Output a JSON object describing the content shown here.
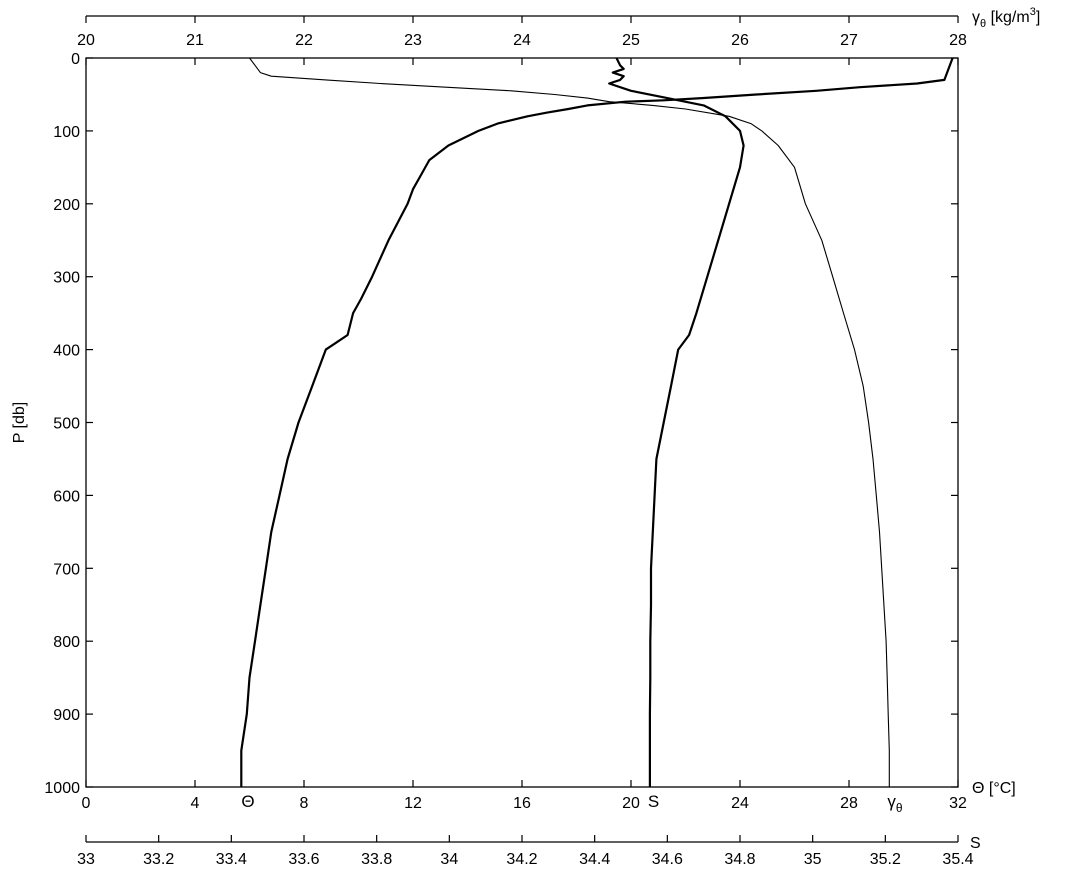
{
  "chart_data": {
    "type": "line",
    "title": "",
    "ylabel": "P [db]",
    "ylim": [
      0,
      1000
    ],
    "y_inverted": true,
    "y_ticks": [
      0,
      100,
      200,
      300,
      400,
      500,
      600,
      700,
      800,
      900,
      1000
    ],
    "grid": false,
    "axes": {
      "theta": {
        "label": "Θ [°C]",
        "position": "bottom",
        "range": [
          0,
          32
        ],
        "ticks": [
          "0",
          "4",
          "8",
          "12",
          "16",
          "20",
          "24",
          "28",
          "32"
        ]
      },
      "gamma": {
        "label_symbol": "γ",
        "label_sub": "θ",
        "label_unit": " [kg/m",
        "label_sup": "3",
        "label_close": "]",
        "position": "top",
        "range": [
          20,
          28
        ],
        "ticks": [
          "20",
          "21",
          "22",
          "23",
          "24",
          "25",
          "26",
          "27",
          "28"
        ]
      },
      "salinity": {
        "label": "S",
        "position": "bottom-offset",
        "range": [
          33,
          35.4
        ],
        "ticks": [
          "33",
          "33.2",
          "33.4",
          "33.6",
          "33.8",
          "34",
          "34.2",
          "34.4",
          "34.6",
          "34.8",
          "35",
          "35.2",
          "35.4"
        ]
      }
    },
    "series": [
      {
        "name": "Θ",
        "axis": "theta",
        "line_width": 2.2,
        "points": [
          [
            0,
            31.8
          ],
          [
            20,
            31.6
          ],
          [
            30,
            31.5
          ],
          [
            35,
            30.5
          ],
          [
            40,
            28.4
          ],
          [
            45,
            26.8
          ],
          [
            50,
            24.6
          ],
          [
            55,
            22.6
          ],
          [
            58,
            21.2
          ],
          [
            60,
            19.8
          ],
          [
            65,
            18.4
          ],
          [
            70,
            17.7
          ],
          [
            75,
            16.9
          ],
          [
            80,
            16.2
          ],
          [
            90,
            15.1
          ],
          [
            100,
            14.4
          ],
          [
            120,
            13.3
          ],
          [
            140,
            12.6
          ],
          [
            160,
            12.3
          ],
          [
            180,
            12.0
          ],
          [
            200,
            11.8
          ],
          [
            250,
            11.1
          ],
          [
            300,
            10.5
          ],
          [
            330,
            10.1
          ],
          [
            350,
            9.8
          ],
          [
            380,
            9.6
          ],
          [
            390,
            9.2
          ],
          [
            400,
            8.8
          ],
          [
            450,
            8.3
          ],
          [
            500,
            7.8
          ],
          [
            550,
            7.4
          ],
          [
            600,
            7.1
          ],
          [
            650,
            6.8
          ],
          [
            700,
            6.6
          ],
          [
            750,
            6.4
          ],
          [
            800,
            6.2
          ],
          [
            850,
            6.0
          ],
          [
            900,
            5.9
          ],
          [
            950,
            5.7
          ],
          [
            1000,
            5.7
          ]
        ]
      },
      {
        "name": "S",
        "axis": "salinity",
        "line_width": 2.2,
        "points": [
          [
            0,
            34.46
          ],
          [
            10,
            34.47
          ],
          [
            15,
            34.48
          ],
          [
            20,
            34.45
          ],
          [
            25,
            34.48
          ],
          [
            30,
            34.47
          ],
          [
            35,
            34.44
          ],
          [
            45,
            34.5
          ],
          [
            55,
            34.6
          ],
          [
            65,
            34.7
          ],
          [
            80,
            34.76
          ],
          [
            100,
            34.8
          ],
          [
            120,
            34.81
          ],
          [
            150,
            34.8
          ],
          [
            200,
            34.77
          ],
          [
            250,
            34.74
          ],
          [
            300,
            34.71
          ],
          [
            350,
            34.68
          ],
          [
            380,
            34.66
          ],
          [
            400,
            34.63
          ],
          [
            450,
            34.61
          ],
          [
            500,
            34.59
          ],
          [
            550,
            34.57
          ],
          [
            600,
            34.565
          ],
          [
            650,
            34.56
          ],
          [
            700,
            34.555
          ],
          [
            750,
            34.555
          ],
          [
            800,
            34.553
          ],
          [
            850,
            34.553
          ],
          [
            900,
            34.552
          ],
          [
            950,
            34.552
          ],
          [
            1000,
            34.552
          ]
        ]
      },
      {
        "name": "γθ",
        "label_symbol": "γ",
        "label_sub": "θ",
        "axis": "gamma",
        "line_width": 1.1,
        "points": [
          [
            0,
            21.5
          ],
          [
            10,
            21.55
          ],
          [
            20,
            21.6
          ],
          [
            25,
            21.7
          ],
          [
            30,
            22.2
          ],
          [
            35,
            22.7
          ],
          [
            40,
            23.3
          ],
          [
            45,
            23.9
          ],
          [
            50,
            24.3
          ],
          [
            55,
            24.6
          ],
          [
            60,
            24.8
          ],
          [
            65,
            25.2
          ],
          [
            70,
            25.5
          ],
          [
            80,
            25.9
          ],
          [
            90,
            26.1
          ],
          [
            100,
            26.2
          ],
          [
            120,
            26.35
          ],
          [
            150,
            26.5
          ],
          [
            200,
            26.6
          ],
          [
            250,
            26.75
          ],
          [
            300,
            26.85
          ],
          [
            350,
            26.95
          ],
          [
            400,
            27.05
          ],
          [
            450,
            27.13
          ],
          [
            500,
            27.18
          ],
          [
            550,
            27.22
          ],
          [
            600,
            27.25
          ],
          [
            650,
            27.28
          ],
          [
            700,
            27.3
          ],
          [
            750,
            27.32
          ],
          [
            800,
            27.34
          ],
          [
            850,
            27.35
          ],
          [
            900,
            27.36
          ],
          [
            950,
            27.37
          ],
          [
            1000,
            27.37
          ]
        ]
      }
    ]
  }
}
